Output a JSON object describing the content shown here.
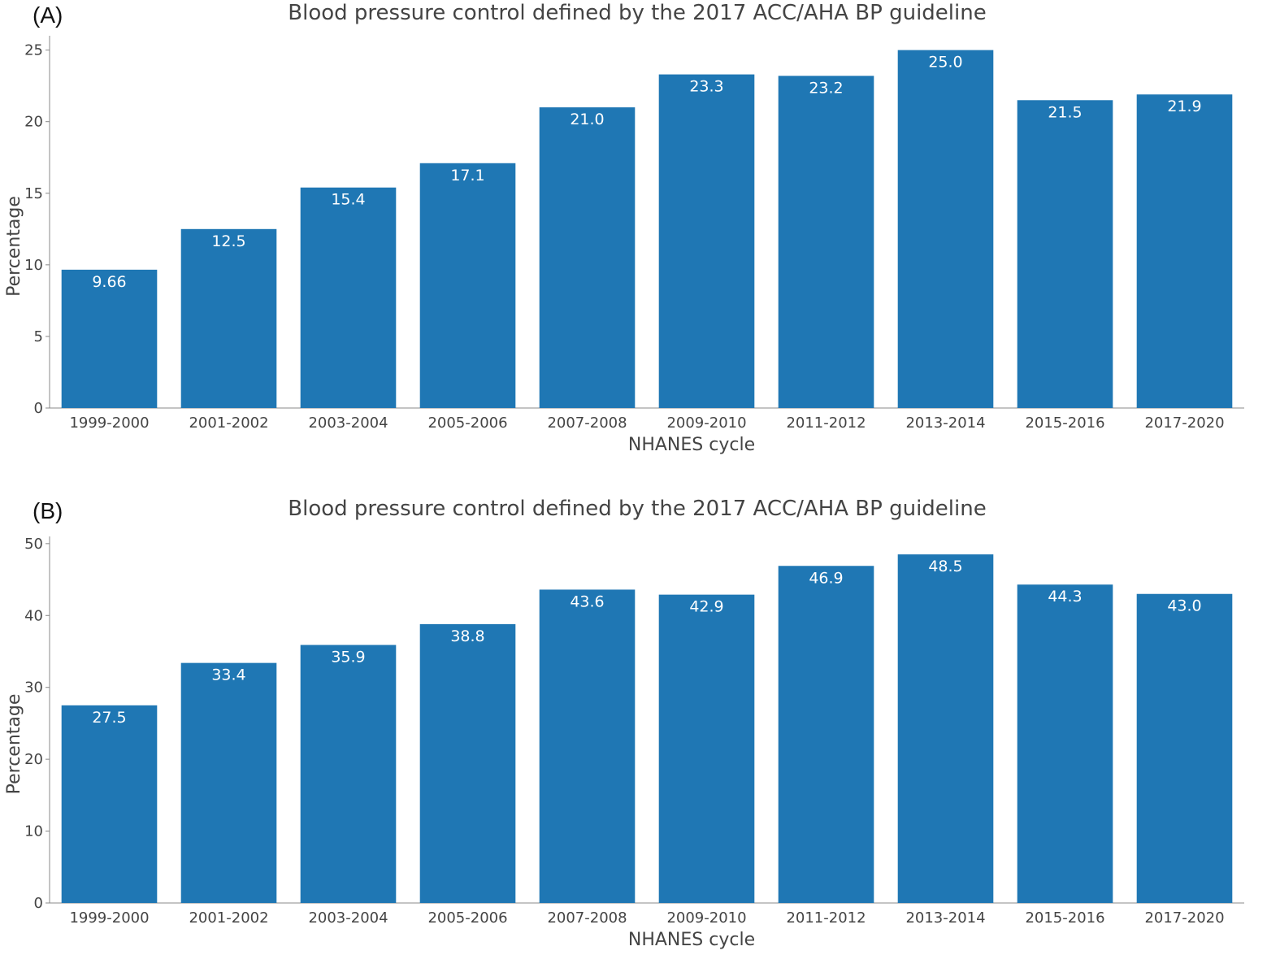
{
  "colors": {
    "bar": "#1f77b4",
    "axis": "#888888",
    "text": "#444444"
  },
  "chart_data": [
    {
      "type": "bar",
      "panel_label": "(A)",
      "title": "Blood pressure control defined by the 2017 ACC/AHA BP guideline",
      "xlabel": "NHANES cycle",
      "ylabel": "Percentage",
      "categories": [
        "1999-2000",
        "2001-2002",
        "2003-2004",
        "2005-2006",
        "2007-2008",
        "2009-2010",
        "2011-2012",
        "2013-2014",
        "2015-2016",
        "2017-2020"
      ],
      "values": [
        9.66,
        12.5,
        15.4,
        17.1,
        21.0,
        23.3,
        23.2,
        25.0,
        21.5,
        21.9
      ],
      "data_labels": [
        "9.66",
        "12.5",
        "15.4",
        "17.1",
        "21.0",
        "23.3",
        "23.2",
        "25.0",
        "21.5",
        "21.9"
      ],
      "ylim": [
        0,
        26
      ],
      "yticks": [
        0,
        5,
        10,
        15,
        20,
        25
      ],
      "grid": false
    },
    {
      "type": "bar",
      "panel_label": "(B)",
      "title": "Blood pressure control defined by the 2017 ACC/AHA BP guideline",
      "xlabel": "NHANES cycle",
      "ylabel": "Percentage",
      "categories": [
        "1999-2000",
        "2001-2002",
        "2003-2004",
        "2005-2006",
        "2007-2008",
        "2009-2010",
        "2011-2012",
        "2013-2014",
        "2015-2016",
        "2017-2020"
      ],
      "values": [
        27.5,
        33.4,
        35.9,
        38.8,
        43.6,
        42.9,
        46.9,
        48.5,
        44.3,
        43.0
      ],
      "data_labels": [
        "27.5",
        "33.4",
        "35.9",
        "38.8",
        "43.6",
        "42.9",
        "46.9",
        "48.5",
        "44.3",
        "43.0"
      ],
      "ylim": [
        0,
        51
      ],
      "yticks": [
        0,
        10,
        20,
        30,
        40,
        50
      ],
      "grid": false
    }
  ]
}
